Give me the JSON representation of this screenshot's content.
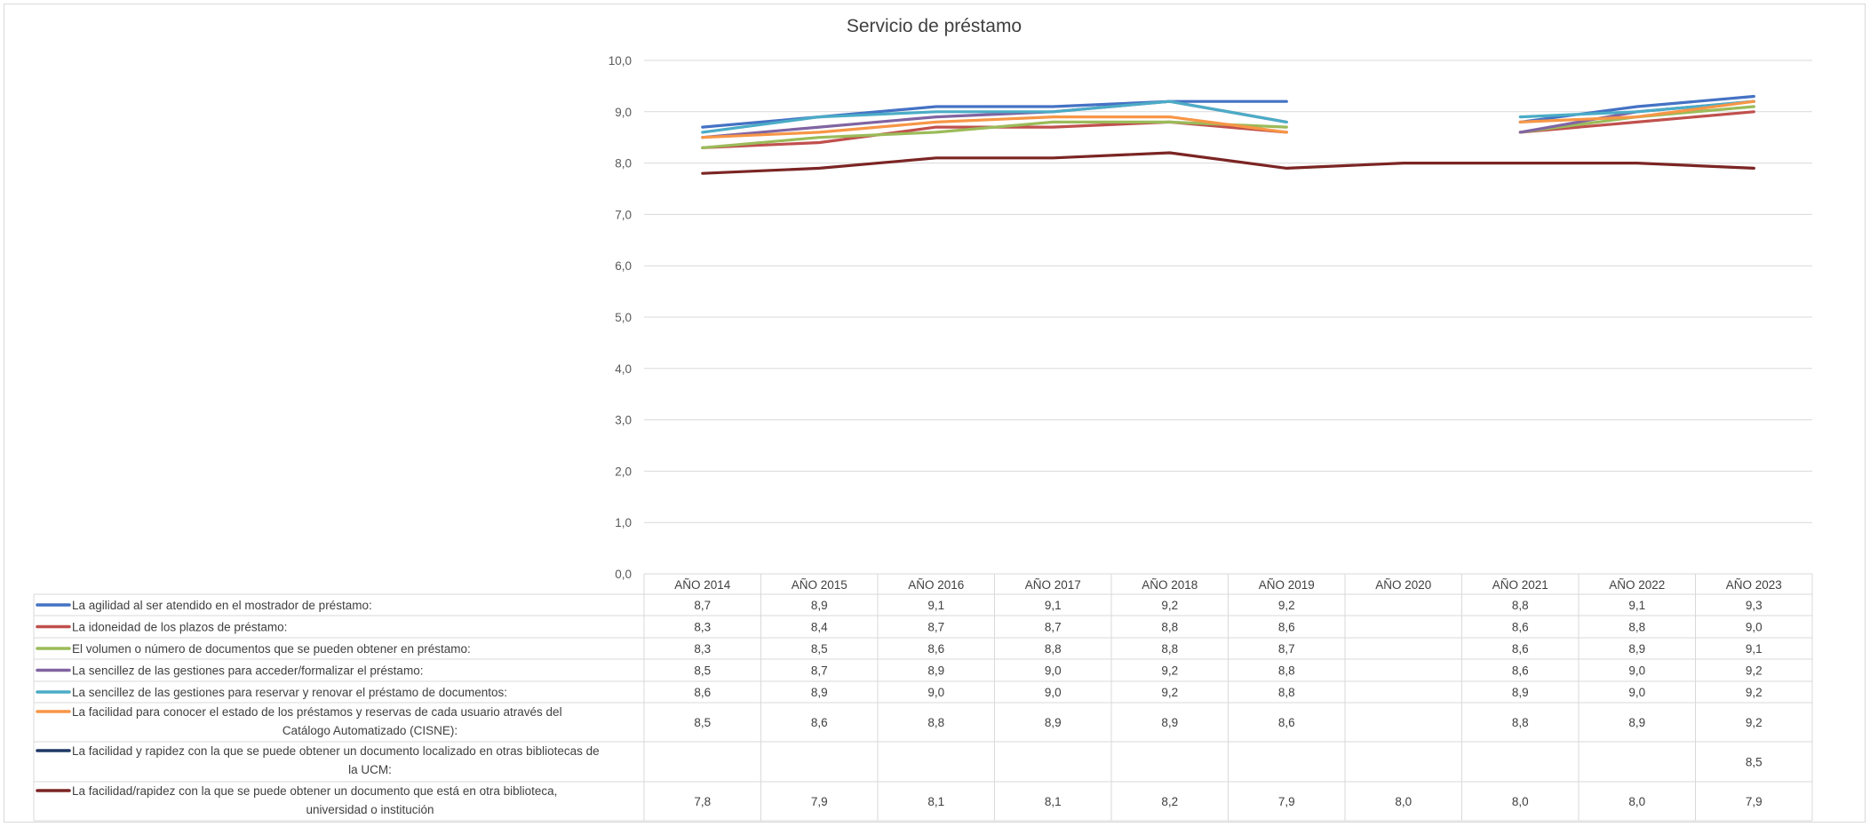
{
  "chart_data": {
    "type": "line",
    "title": "Servicio de préstamo",
    "categories": [
      "AÑO 2014",
      "AÑO 2015",
      "AÑO 2016",
      "AÑO 2017",
      "AÑO 2018",
      "AÑO 2019",
      "AÑO 2020",
      "AÑO 2021",
      "AÑO 2022",
      "AÑO 2023"
    ],
    "y_ticks": [
      "0,0",
      "1,0",
      "2,0",
      "3,0",
      "4,0",
      "5,0",
      "6,0",
      "7,0",
      "8,0",
      "9,0",
      "10,0"
    ],
    "ylim": [
      0,
      10
    ],
    "grid": true,
    "legend": "data-table-below",
    "series": [
      {
        "name": "La agilidad al ser atendido en el mostrador de préstamo:",
        "color": "#4472c4",
        "values": [
          8.7,
          8.9,
          9.1,
          9.1,
          9.2,
          9.2,
          null,
          8.8,
          9.1,
          9.3
        ],
        "labels": [
          "8,7",
          "8,9",
          "9,1",
          "9,1",
          "9,2",
          "9,2",
          "",
          "8,8",
          "9,1",
          "9,3"
        ]
      },
      {
        "name": "La idoneidad de los plazos de préstamo:",
        "color": "#c0504d",
        "values": [
          8.3,
          8.4,
          8.7,
          8.7,
          8.8,
          8.6,
          null,
          8.6,
          8.8,
          9.0
        ],
        "labels": [
          "8,3",
          "8,4",
          "8,7",
          "8,7",
          "8,8",
          "8,6",
          "",
          "8,6",
          "8,8",
          "9,0"
        ]
      },
      {
        "name": "El volumen o número de documentos que se pueden obtener en préstamo:",
        "color": "#9bbb59",
        "values": [
          8.3,
          8.5,
          8.6,
          8.8,
          8.8,
          8.7,
          null,
          8.6,
          8.9,
          9.1
        ],
        "labels": [
          "8,3",
          "8,5",
          "8,6",
          "8,8",
          "8,8",
          "8,7",
          "",
          "8,6",
          "8,9",
          "9,1"
        ]
      },
      {
        "name": "La sencillez de las gestiones para acceder/formalizar el préstamo:",
        "color": "#8064a2",
        "values": [
          8.5,
          8.7,
          8.9,
          9.0,
          9.2,
          8.8,
          null,
          8.6,
          9.0,
          9.2
        ],
        "labels": [
          "8,5",
          "8,7",
          "8,9",
          "9,0",
          "9,2",
          "8,8",
          "",
          "8,6",
          "9,0",
          "9,2"
        ]
      },
      {
        "name": "La sencillez de las gestiones para reservar y renovar el préstamo de documentos:",
        "color": "#4bacc6",
        "values": [
          8.6,
          8.9,
          9.0,
          9.0,
          9.2,
          8.8,
          null,
          8.9,
          9.0,
          9.2
        ],
        "labels": [
          "8,6",
          "8,9",
          "9,0",
          "9,0",
          "9,2",
          "8,8",
          "",
          "8,9",
          "9,0",
          "9,2"
        ]
      },
      {
        "name": "La facilidad para conocer el estado de los préstamos y reservas de cada usuario através del Catálogo Automatizado (CISNE):",
        "color": "#f79646",
        "values": [
          8.5,
          8.6,
          8.8,
          8.9,
          8.9,
          8.6,
          null,
          8.8,
          8.9,
          9.2
        ],
        "labels": [
          "8,5",
          "8,6",
          "8,8",
          "8,9",
          "8,9",
          "8,6",
          "",
          "8,8",
          "8,9",
          "9,2"
        ]
      },
      {
        "name": "La facilidad y rapidez con la que se puede obtener un documento localizado en otras bibliotecas de la UCM:",
        "color": "#1f3864",
        "values": [
          null,
          null,
          null,
          null,
          null,
          null,
          null,
          null,
          null,
          8.5
        ],
        "labels": [
          "",
          "",
          "",
          "",
          "",
          "",
          "",
          "",
          "",
          "8,5"
        ]
      },
      {
        "name": "La facilidad/rapidez con la que se puede obtener un documento que está en otra biblioteca, universidad o institución",
        "color": "#7b2524",
        "values": [
          7.8,
          7.9,
          8.1,
          8.1,
          8.2,
          7.9,
          8.0,
          8.0,
          8.0,
          7.9
        ],
        "labels": [
          "7,8",
          "7,9",
          "8,1",
          "8,1",
          "8,2",
          "7,9",
          "8,0",
          "8,0",
          "8,0",
          "7,9"
        ]
      }
    ]
  }
}
